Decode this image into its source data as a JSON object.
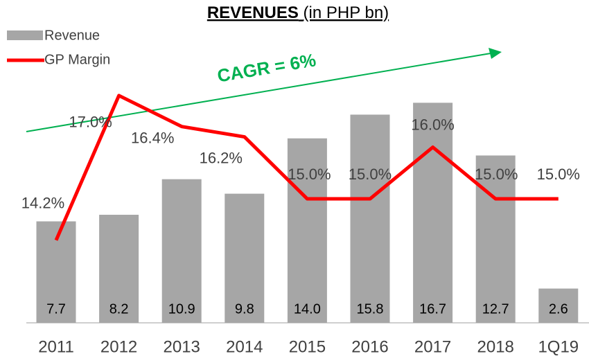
{
  "chart_data": {
    "type": "bar_line",
    "title": "REVENUES",
    "subtitle": "(in PHP bn)",
    "annotation": "CAGR = 6%",
    "categories": [
      "2011",
      "2012",
      "2013",
      "2014",
      "2015",
      "2016",
      "2017",
      "2018",
      "1Q19"
    ],
    "ylim": [
      0,
      24.5
    ],
    "y2lim": [
      12.6,
      18.85
    ],
    "series": [
      {
        "name": "Revenue",
        "type": "bar",
        "color": "#a6a6a6",
        "values": [
          7.7,
          8.2,
          10.9,
          9.8,
          14.0,
          15.8,
          16.7,
          12.7,
          2.6
        ],
        "value_labels": [
          "7.7",
          "8.2",
          "10.9",
          "9.8",
          "14.0",
          "15.8",
          "16.7",
          "12.7",
          "2.6"
        ]
      },
      {
        "name": "GP Margin",
        "type": "line",
        "axis": "y2",
        "color": "#ff0000",
        "values": [
          14.2,
          17.0,
          16.4,
          16.2,
          15.0,
          15.0,
          16.0,
          15.0,
          15.0
        ],
        "value_labels": [
          "14.2%",
          "17.0%",
          "16.4%",
          "16.2%",
          "15.0%",
          "15.0%",
          "16.0%",
          "15.0%",
          "15.0%"
        ]
      }
    ]
  }
}
